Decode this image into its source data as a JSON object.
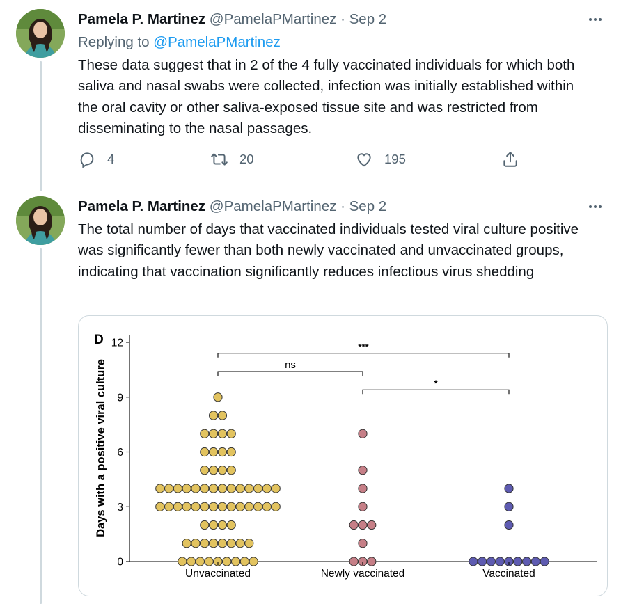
{
  "tweets": [
    {
      "author_name": "Pamela P. Martinez",
      "author_handle": "@PamelaPMartinez",
      "separator": "·",
      "date": "Sep 2",
      "replying_label": "Replying to",
      "replying_handle": "@PamelaPMartinez",
      "text": "These data suggest that in 2 of the 4 fully vaccinated individuals for which both saliva and nasal swabs were collected, infection was initially established within the oral cavity or other saliva-exposed tissue site and was restricted from disseminating to the nasal passages.",
      "reply_count": "4",
      "retweet_count": "20",
      "like_count": "195",
      "more_icon": "more-horizontal-icon"
    },
    {
      "author_name": "Pamela P. Martinez",
      "author_handle": "@PamelaPMartinez",
      "separator": "·",
      "date": "Sep 2",
      "text": "The total number of days that vaccinated individuals tested viral culture positive was significantly fewer than both newly vaccinated and unvaccinated groups, indicating that vaccination significantly reduces infectious virus shedding",
      "more_icon": "more-horizontal-icon"
    }
  ],
  "colors": {
    "unvaccinated": "#e2c35f",
    "newly_vaccinated": "#c67f87",
    "vaccinated": "#5e5bb1",
    "link": "#1d9bf0",
    "muted": "#536471"
  },
  "chart_data": {
    "type": "scatter",
    "panel_label": "D",
    "ylabel": "Days with a positive viral culture",
    "ylim": [
      0,
      12
    ],
    "yticks": [
      "0",
      "3",
      "6",
      "9",
      "12"
    ],
    "categories": [
      "Unvaccinated",
      "Newly vaccinated",
      "Vaccinated"
    ],
    "series": [
      {
        "name": "Unvaccinated",
        "counts": [
          {
            "day": 0,
            "n": 9
          },
          {
            "day": 1,
            "n": 8
          },
          {
            "day": 2,
            "n": 4
          },
          {
            "day": 3,
            "n": 14
          },
          {
            "day": 4,
            "n": 14
          },
          {
            "day": 5,
            "n": 4
          },
          {
            "day": 6,
            "n": 4
          },
          {
            "day": 7,
            "n": 4
          },
          {
            "day": 8,
            "n": 2
          },
          {
            "day": 9,
            "n": 1
          }
        ]
      },
      {
        "name": "Newly vaccinated",
        "counts": [
          {
            "day": 0,
            "n": 3
          },
          {
            "day": 1,
            "n": 1
          },
          {
            "day": 2,
            "n": 3
          },
          {
            "day": 3,
            "n": 1
          },
          {
            "day": 4,
            "n": 1
          },
          {
            "day": 5,
            "n": 1
          },
          {
            "day": 7,
            "n": 1
          }
        ]
      },
      {
        "name": "Vaccinated",
        "counts": [
          {
            "day": 0,
            "n": 9
          },
          {
            "day": 2,
            "n": 1
          },
          {
            "day": 3,
            "n": 1
          },
          {
            "day": 4,
            "n": 1
          }
        ]
      }
    ],
    "significance": [
      {
        "from": 0,
        "to": 2,
        "y": 11.4,
        "label": "***"
      },
      {
        "from": 0,
        "to": 1,
        "y": 10.4,
        "label": "ns"
      },
      {
        "from": 1,
        "to": 2,
        "y": 9.4,
        "label": "*"
      }
    ]
  }
}
